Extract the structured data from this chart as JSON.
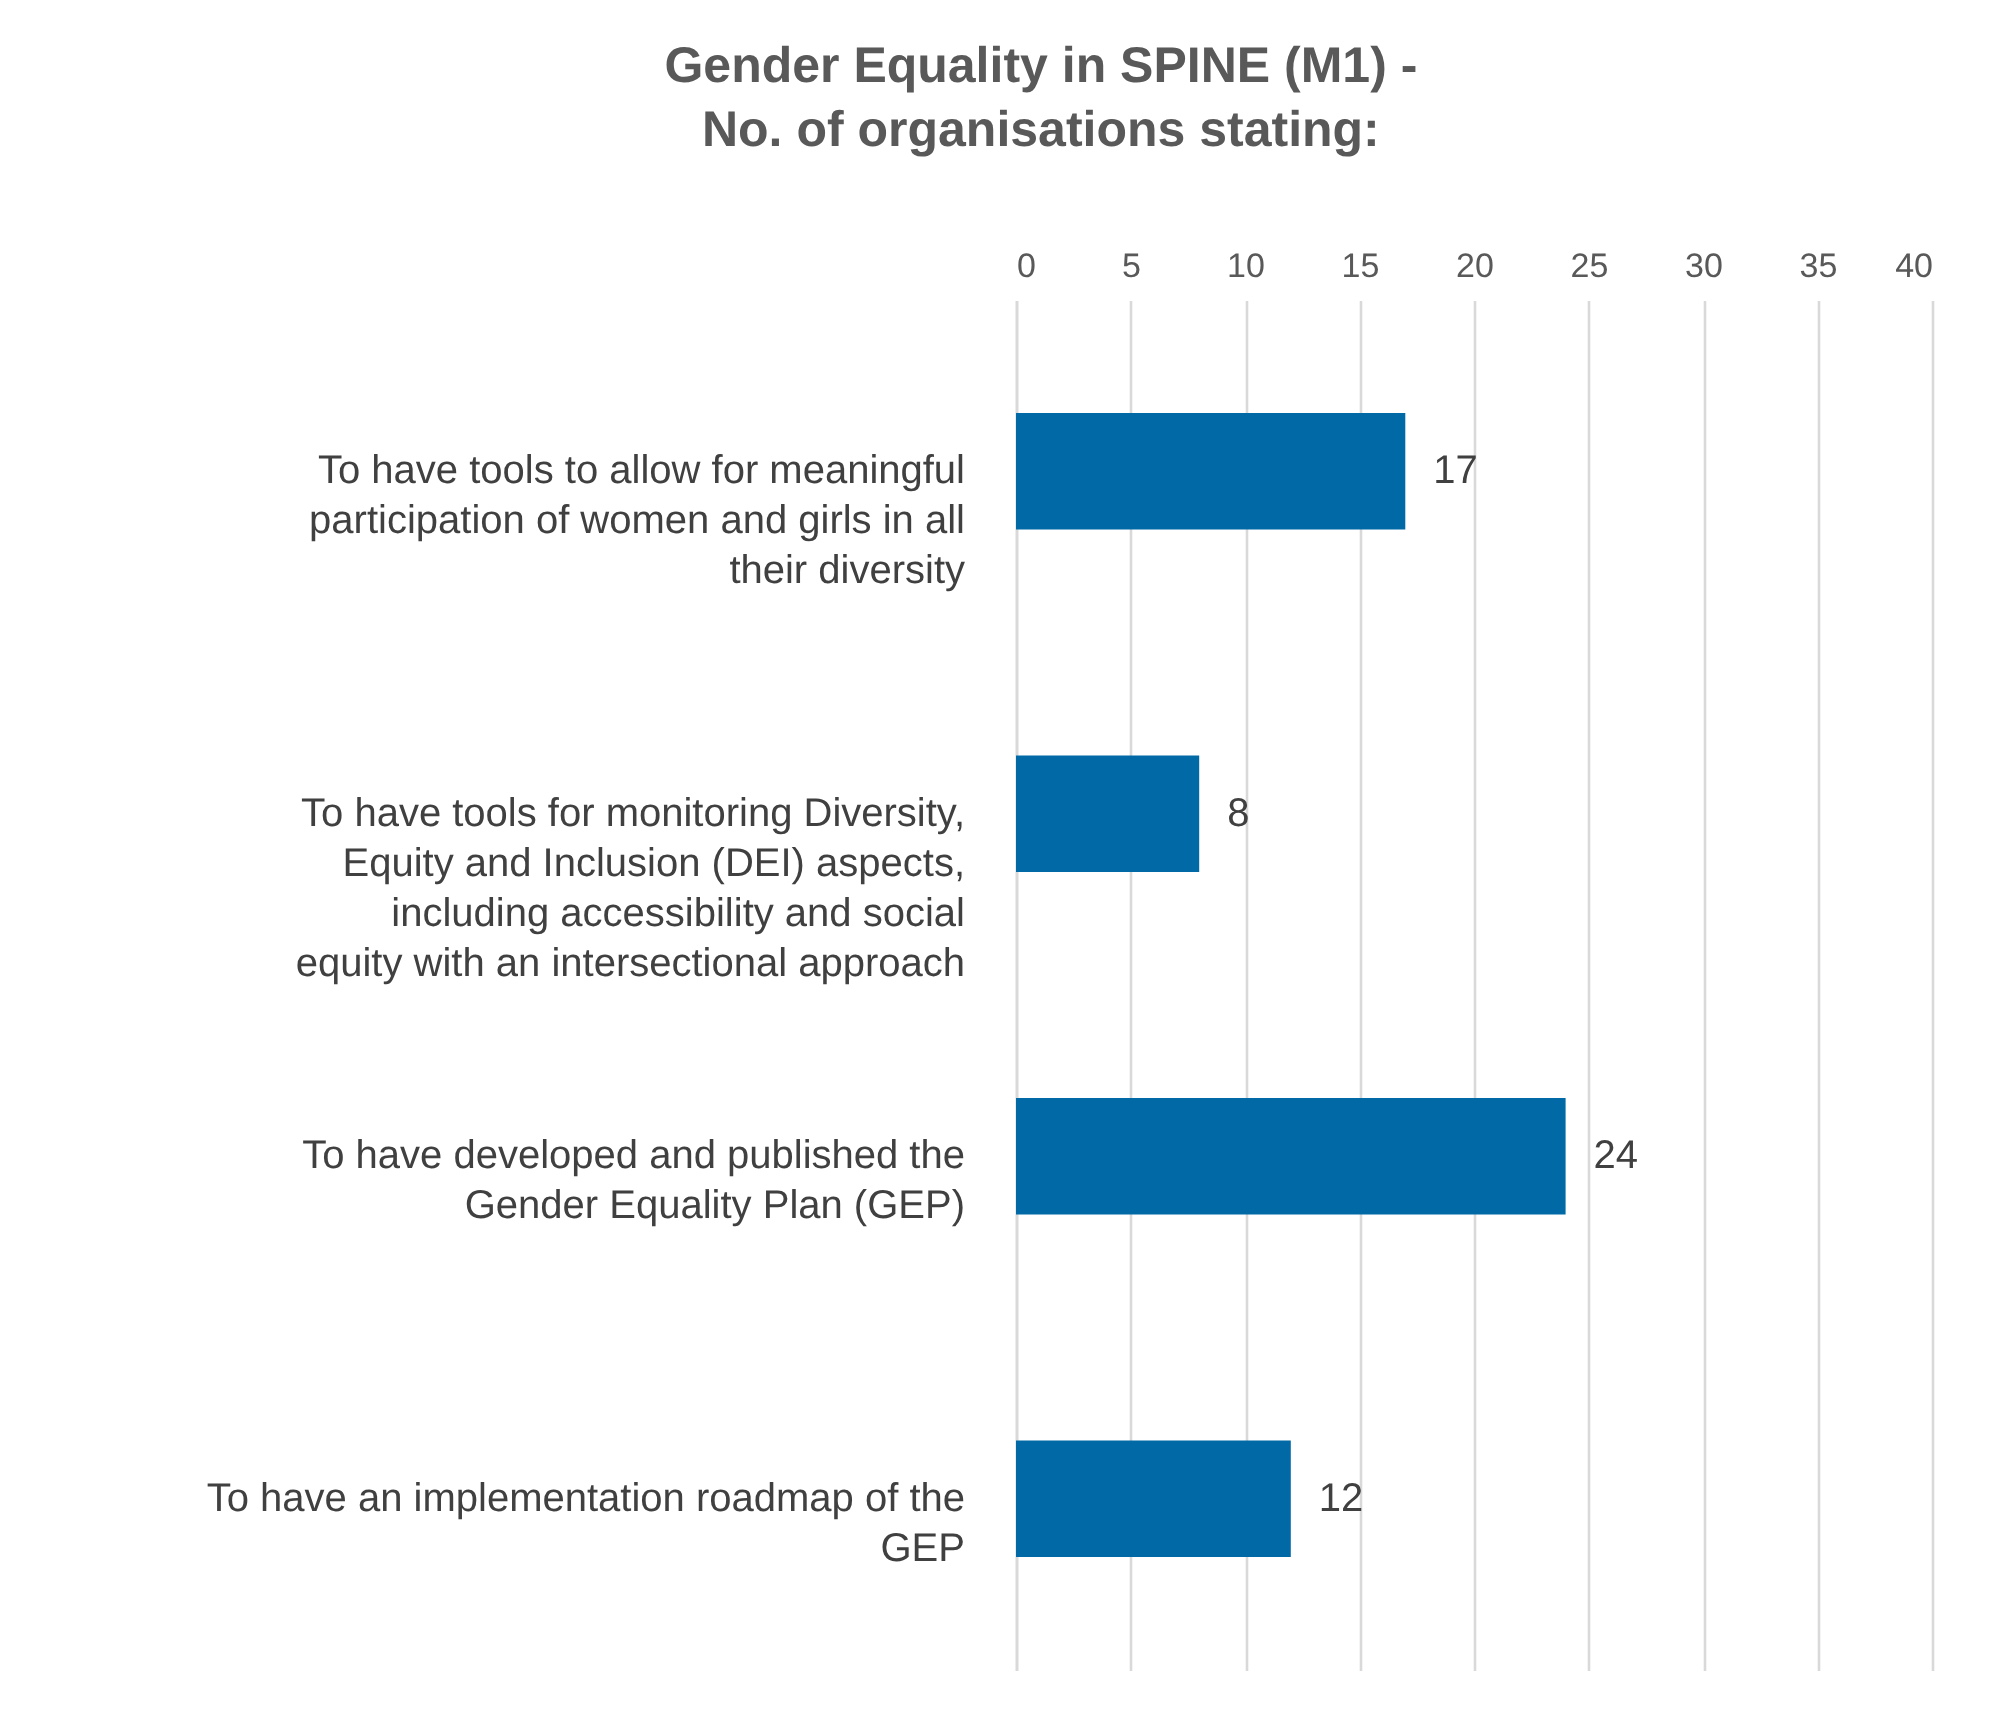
{
  "chart_data": {
    "type": "bar",
    "orientation": "horizontal",
    "title": [
      "Gender Equality in SPINE (M1) -",
      "No. of organisations stating:"
    ],
    "categories": [
      "To have tools to allow for meaningful participation of women and girls in all their diversity",
      "To have tools for monitoring Diversity, Equity and Inclusion (DEI) aspects, including accessibility and social equity with an intersectional approach",
      "To have developed and published the Gender Equality Plan (GEP)",
      "To have an implementation roadmap of the GEP"
    ],
    "values": [
      17,
      8,
      24,
      12
    ],
    "color": "#0069a6",
    "xlim": [
      0,
      40
    ],
    "xticks": [
      0,
      5,
      10,
      15,
      20,
      25,
      30,
      35,
      40
    ],
    "grid": true,
    "data_labels": true
  }
}
